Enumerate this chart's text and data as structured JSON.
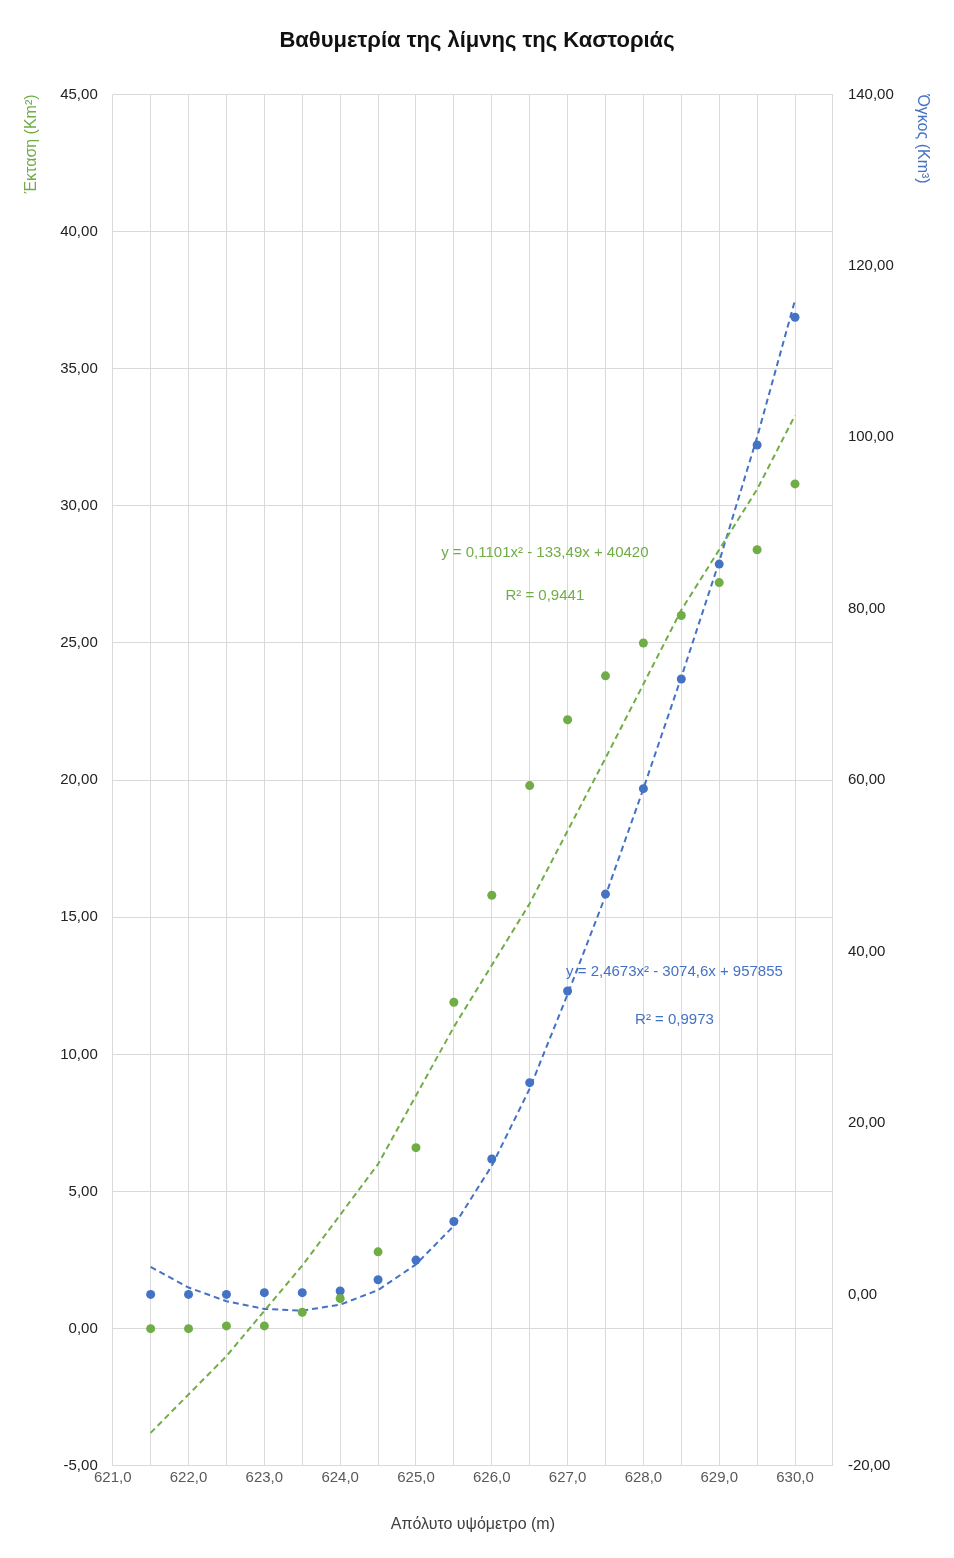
{
  "chart_data": {
    "type": "scatter",
    "title": "Βαθυμετρία της λίμνης της Καστοριάς",
    "xlabel": "Απόλυτο υψόμετρο (m)",
    "ylabel": "Έκταση (Km²)",
    "y2label": "Όγκος (Km³)",
    "annotations": [
      "y = 2,4673x² - 3074,6x + 957855",
      "R² = 0,9973",
      "y = 0,1101x² - 133,49x + 40420",
      "R² = 0,9441"
    ],
    "x": [
      621.5,
      622,
      622.5,
      623,
      623.5,
      624,
      624.5,
      625,
      625.5,
      626,
      626.5,
      627,
      627.5,
      628,
      628.5,
      629,
      629.5,
      630
    ],
    "series": [
      {
        "color": "#70ad47",
        "marker": "circle",
        "values": [
          0,
          0,
          0.1,
          0.1,
          0.6,
          1.1,
          2.8,
          6.6,
          11.9,
          15.8,
          19.8,
          22.2,
          23.8,
          25.0,
          26.0,
          27.2,
          28.4,
          30.8
        ]
      },
      {
        "axis": "y2",
        "color": "#4472c4",
        "marker": "circle",
        "values": [
          0,
          0,
          0,
          0.2,
          0.2,
          0.4,
          1.7,
          4.0,
          8.5,
          15.8,
          24.7,
          35.4,
          46.7,
          59.0,
          71.8,
          85.2,
          99.1,
          114.0
        ]
      },
      {
        "type": "line",
        "color": "#70ad47",
        "marker": "none",
        "line_style": "dashed",
        "x": [
          621.5,
          622.5,
          623.5,
          624.5,
          625.5,
          626.5,
          627.5,
          628.5,
          629.5,
          630
        ],
        "values": [
          -3.8,
          -1.0,
          2.3,
          6.0,
          11.0,
          15.5,
          20.8,
          26.2,
          30.6,
          33.3
        ]
      },
      {
        "type": "line",
        "axis": "y2",
        "color": "#4472c4",
        "marker": "none",
        "line_style": "dashed",
        "x": [
          621.5,
          622,
          622.5,
          623,
          623.5,
          624,
          624.5,
          625,
          625.5,
          626,
          626.5,
          627,
          627.5,
          628,
          628.5,
          629,
          629.5,
          630
        ],
        "values": [
          3.2,
          0.8,
          -0.8,
          -1.7,
          -1.9,
          -1.2,
          0.5,
          3.5,
          8.0,
          15.0,
          24.0,
          35.0,
          46.5,
          59.0,
          72.0,
          85.5,
          100,
          116
        ]
      }
    ],
    "xlim": [
      621,
      630.5
    ],
    "xticks": [
      {
        "value": 621,
        "label": "621,0"
      },
      {
        "value": 621.5,
        "label": null
      },
      {
        "value": 622,
        "label": "622,0"
      },
      {
        "value": 622.5,
        "label": null
      },
      {
        "value": 623,
        "label": "623,0"
      },
      {
        "value": 623.5,
        "label": null
      },
      {
        "value": 624,
        "label": "624,0"
      },
      {
        "value": 624.5,
        "label": null
      },
      {
        "value": 625,
        "label": "625,0"
      },
      {
        "value": 625.5,
        "label": null
      },
      {
        "value": 626,
        "label": "626,0"
      },
      {
        "value": 626.5,
        "label": null
      },
      {
        "value": 627,
        "label": "627,0"
      },
      {
        "value": 627.5,
        "label": null
      },
      {
        "value": 628,
        "label": "628,0"
      },
      {
        "value": 628.5,
        "label": null
      },
      {
        "value": 629,
        "label": "629,0"
      },
      {
        "value": 629.5,
        "label": null
      },
      {
        "value": 630,
        "label": "630,0"
      },
      {
        "value": 630.5,
        "label": null
      }
    ],
    "ylim": [
      -5,
      45
    ],
    "yticks": [
      {
        "value": -5,
        "label": "-5,00"
      },
      {
        "value": 0,
        "label": "0,00"
      },
      {
        "value": 5,
        "label": "5,00"
      },
      {
        "value": 10,
        "label": "10,00"
      },
      {
        "value": 15,
        "label": "15,00"
      },
      {
        "value": 20,
        "label": "20,00"
      },
      {
        "value": 25,
        "label": "25,00"
      },
      {
        "value": 30,
        "label": "30,00"
      },
      {
        "value": 35,
        "label": "35,00"
      },
      {
        "value": 40,
        "label": "40,00"
      },
      {
        "value": 45,
        "label": "45,00"
      }
    ],
    "y2lim": [
      -20,
      140
    ],
    "y2ticks": [
      {
        "value": -20,
        "label": "-20,00"
      },
      {
        "value": 0,
        "label": "0,00"
      },
      {
        "value": 20,
        "label": "20,00"
      },
      {
        "value": 40,
        "label": "40,00"
      },
      {
        "value": 60,
        "label": "60,00"
      },
      {
        "value": 80,
        "label": "80,00"
      },
      {
        "value": 100,
        "label": "100,00"
      },
      {
        "value": 120,
        "label": "120,00"
      },
      {
        "value": 140,
        "label": "140,00"
      }
    ],
    "grid": true
  }
}
